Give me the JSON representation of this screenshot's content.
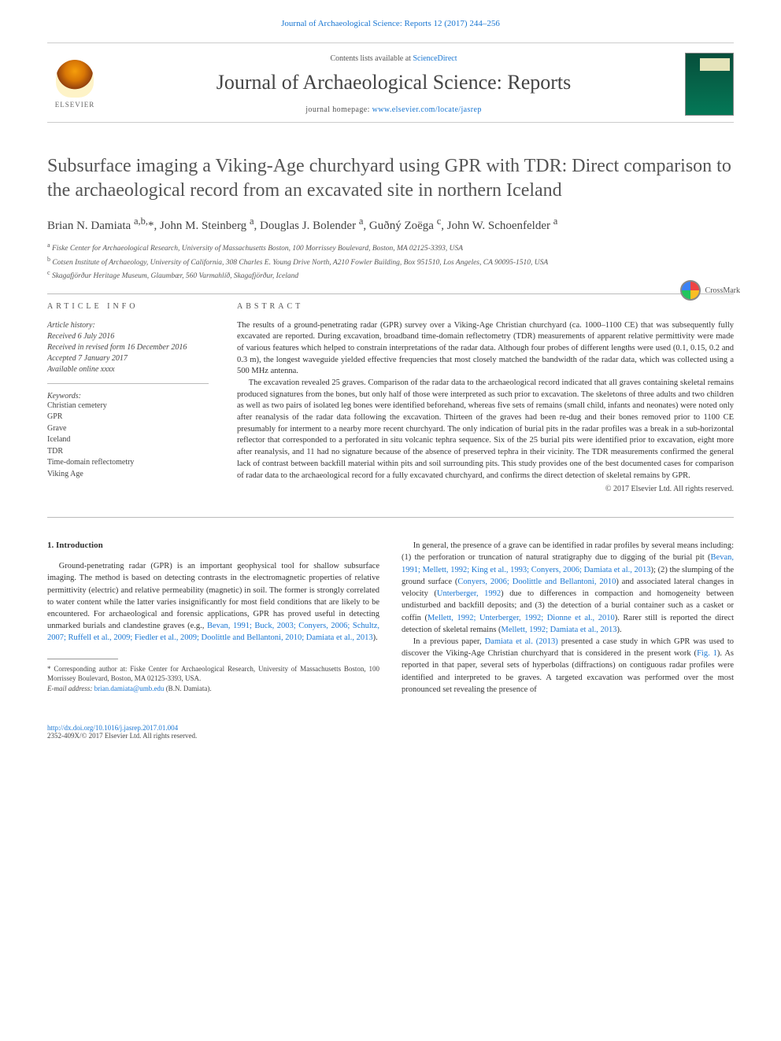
{
  "top_link": {
    "journal": "Journal of Archaeological Science: Reports",
    "citation": "12 (2017) 244–256"
  },
  "masthead": {
    "contents_prefix": "Contents lists available at ",
    "contents_link": "ScienceDirect",
    "journal_name": "Journal of Archaeological Science: Reports",
    "homepage_prefix": "journal homepage: ",
    "homepage_url": "www.elsevier.com/locate/jasrep",
    "publisher_label": "ELSEVIER",
    "crossmark_label": "CrossMark"
  },
  "article": {
    "title": "Subsurface imaging a Viking-Age churchyard using GPR with TDR: Direct comparison to the archaeological record from an excavated site in northern Iceland",
    "authors_html": "Brian N. Damiata <sup>a,b,</sup><span class='star'>*</span>, John M. Steinberg <sup>a</sup>, Douglas J. Bolender <sup>a</sup>, Guðný Zoëga <sup>c</sup>, John W. Schoenfelder <sup>a</sup>",
    "affiliations": [
      {
        "key": "a",
        "text": "Fiske Center for Archaeological Research, University of Massachusetts Boston, 100 Morrissey Boulevard, Boston, MA 02125-3393, USA"
      },
      {
        "key": "b",
        "text": "Cotsen Institute of Archaeology, University of California, 308 Charles E. Young Drive North, A210 Fowler Building, Box 951510, Los Angeles, CA 90095-1510, USA"
      },
      {
        "key": "c",
        "text": "Skagafjörður Heritage Museum, Glaumbær, 560 Varmahlíð, Skagafjörður, Iceland"
      }
    ]
  },
  "info": {
    "heading": "article info",
    "history_label": "Article history:",
    "received": "Received 6 July 2016",
    "revised": "Received in revised form 16 December 2016",
    "accepted": "Accepted 7 January 2017",
    "online": "Available online xxxx",
    "keywords_label": "Keywords:",
    "keywords": [
      "Christian cemetery",
      "GPR",
      "Grave",
      "Iceland",
      "TDR",
      "Time-domain reflectometry",
      "Viking Age"
    ]
  },
  "abstract": {
    "heading": "abstract",
    "p1": "The results of a ground-penetrating radar (GPR) survey over a Viking-Age Christian churchyard (ca. 1000–1100 CE) that was subsequently fully excavated are reported. During excavation, broadband time-domain reflectometry (TDR) measurements of apparent relative permittivity were made of various features which helped to constrain interpretations of the radar data. Although four probes of different lengths were used (0.1, 0.15, 0.2 and 0.3 m), the longest waveguide yielded effective frequencies that most closely matched the bandwidth of the radar data, which was collected using a 500 MHz antenna.",
    "p2": "The excavation revealed 25 graves. Comparison of the radar data to the archaeological record indicated that all graves containing skeletal remains produced signatures from the bones, but only half of those were interpreted as such prior to excavation. The skeletons of three adults and two children as well as two pairs of isolated leg bones were identified beforehand, whereas five sets of remains (small child, infants and neonates) were noted only after reanalysis of the radar data following the excavation. Thirteen of the graves had been re-dug and their bones removed prior to 1100 CE presumably for interment to a nearby more recent churchyard. The only indication of burial pits in the radar profiles was a break in a sub-horizontal reflector that corresponded to a perforated in situ volcanic tephra sequence. Six of the 25 burial pits were identified prior to excavation, eight more after reanalysis, and 11 had no signature because of the absence of preserved tephra in their vicinity. The TDR measurements confirmed the general lack of contrast between backfill material within pits and soil surrounding pits. This study provides one of the best documented cases for comparison of radar data to the archaeological record for a fully excavated churchyard, and confirms the direct detection of skeletal remains by GPR.",
    "copyright": "© 2017 Elsevier Ltd. All rights reserved."
  },
  "body": {
    "sec1_head": "1. Introduction",
    "left_p1_pre": "Ground-penetrating radar (GPR) is an important geophysical tool for shallow subsurface imaging. The method is based on detecting contrasts in the electromagnetic properties of relative permittivity (electric) and relative permeability (magnetic) in soil. The former is strongly correlated to water content while the latter varies insignificantly for most field conditions that are likely to be encountered. For archaeological and forensic applications, GPR has proved useful in detecting unmarked burials and clandestine graves (e.g., ",
    "left_p1_link": "Bevan, 1991; Buck, 2003; Conyers, 2006; Schultz, 2007; Ruffell et al., 2009; Fiedler et al., 2009; Doolittle and Bellantoni, 2010; Damiata et al., 2013",
    "left_p1_post": ").",
    "right_p1_pre": "In general, the presence of a grave can be identified in radar profiles by several means including: (1) the perforation or truncation of natural stratigraphy due to digging of the burial pit (",
    "right_p1_link1": "Bevan, 1991; Mellett, 1992; King et al., 1993; Conyers, 2006; Damiata et al., 2013",
    "right_p1_mid1": "); (2) the slumping of the ground surface (",
    "right_p1_link2": "Conyers, 2006; Doolittle and Bellantoni, 2010",
    "right_p1_mid2": ") and associated lateral changes in velocity (",
    "right_p1_link3": "Unterberger, 1992",
    "right_p1_mid3": ") due to differences in compaction and homogeneity between undisturbed and backfill deposits; and (3) the detection of a burial container such as a casket or coffin (",
    "right_p1_link4": "Mellett, 1992; Unterberger, 1992; Dionne et al., 2010",
    "right_p1_mid4": "). Rarer still is reported the direct detection of skeletal remains (",
    "right_p1_link5": "Mellett, 1992; Damiata et al., 2013",
    "right_p1_post": ").",
    "right_p2_pre": "In a previous paper, ",
    "right_p2_link1": "Damiata et al. (2013)",
    "right_p2_mid1": " presented a case study in which GPR was used to discover the Viking-Age Christian churchyard that is considered in the present work (",
    "right_p2_link2": "Fig. 1",
    "right_p2_post": "). As reported in that paper, several sets of hyperbolas (diffractions) on contiguous radar profiles were identified and interpreted to be graves. A targeted excavation was performed over the most pronounced set revealing the presence of"
  },
  "footnotes": {
    "corr": "* Corresponding author at: Fiske Center for Archaeological Research, University of Massachusetts Boston, 100 Morrissey Boulevard, Boston, MA 02125-3393, USA.",
    "email_label": "E-mail address: ",
    "email": "brian.damiata@umb.edu",
    "email_who": " (B.N. Damiata)."
  },
  "footer": {
    "doi": "http://dx.doi.org/10.1016/j.jasrep.2017.01.004",
    "issn_line": "2352-409X/© 2017 Elsevier Ltd. All rights reserved."
  },
  "colors": {
    "link": "#1976d2",
    "text": "#333333",
    "muted": "#555555",
    "rule": "#bbbbbb"
  }
}
